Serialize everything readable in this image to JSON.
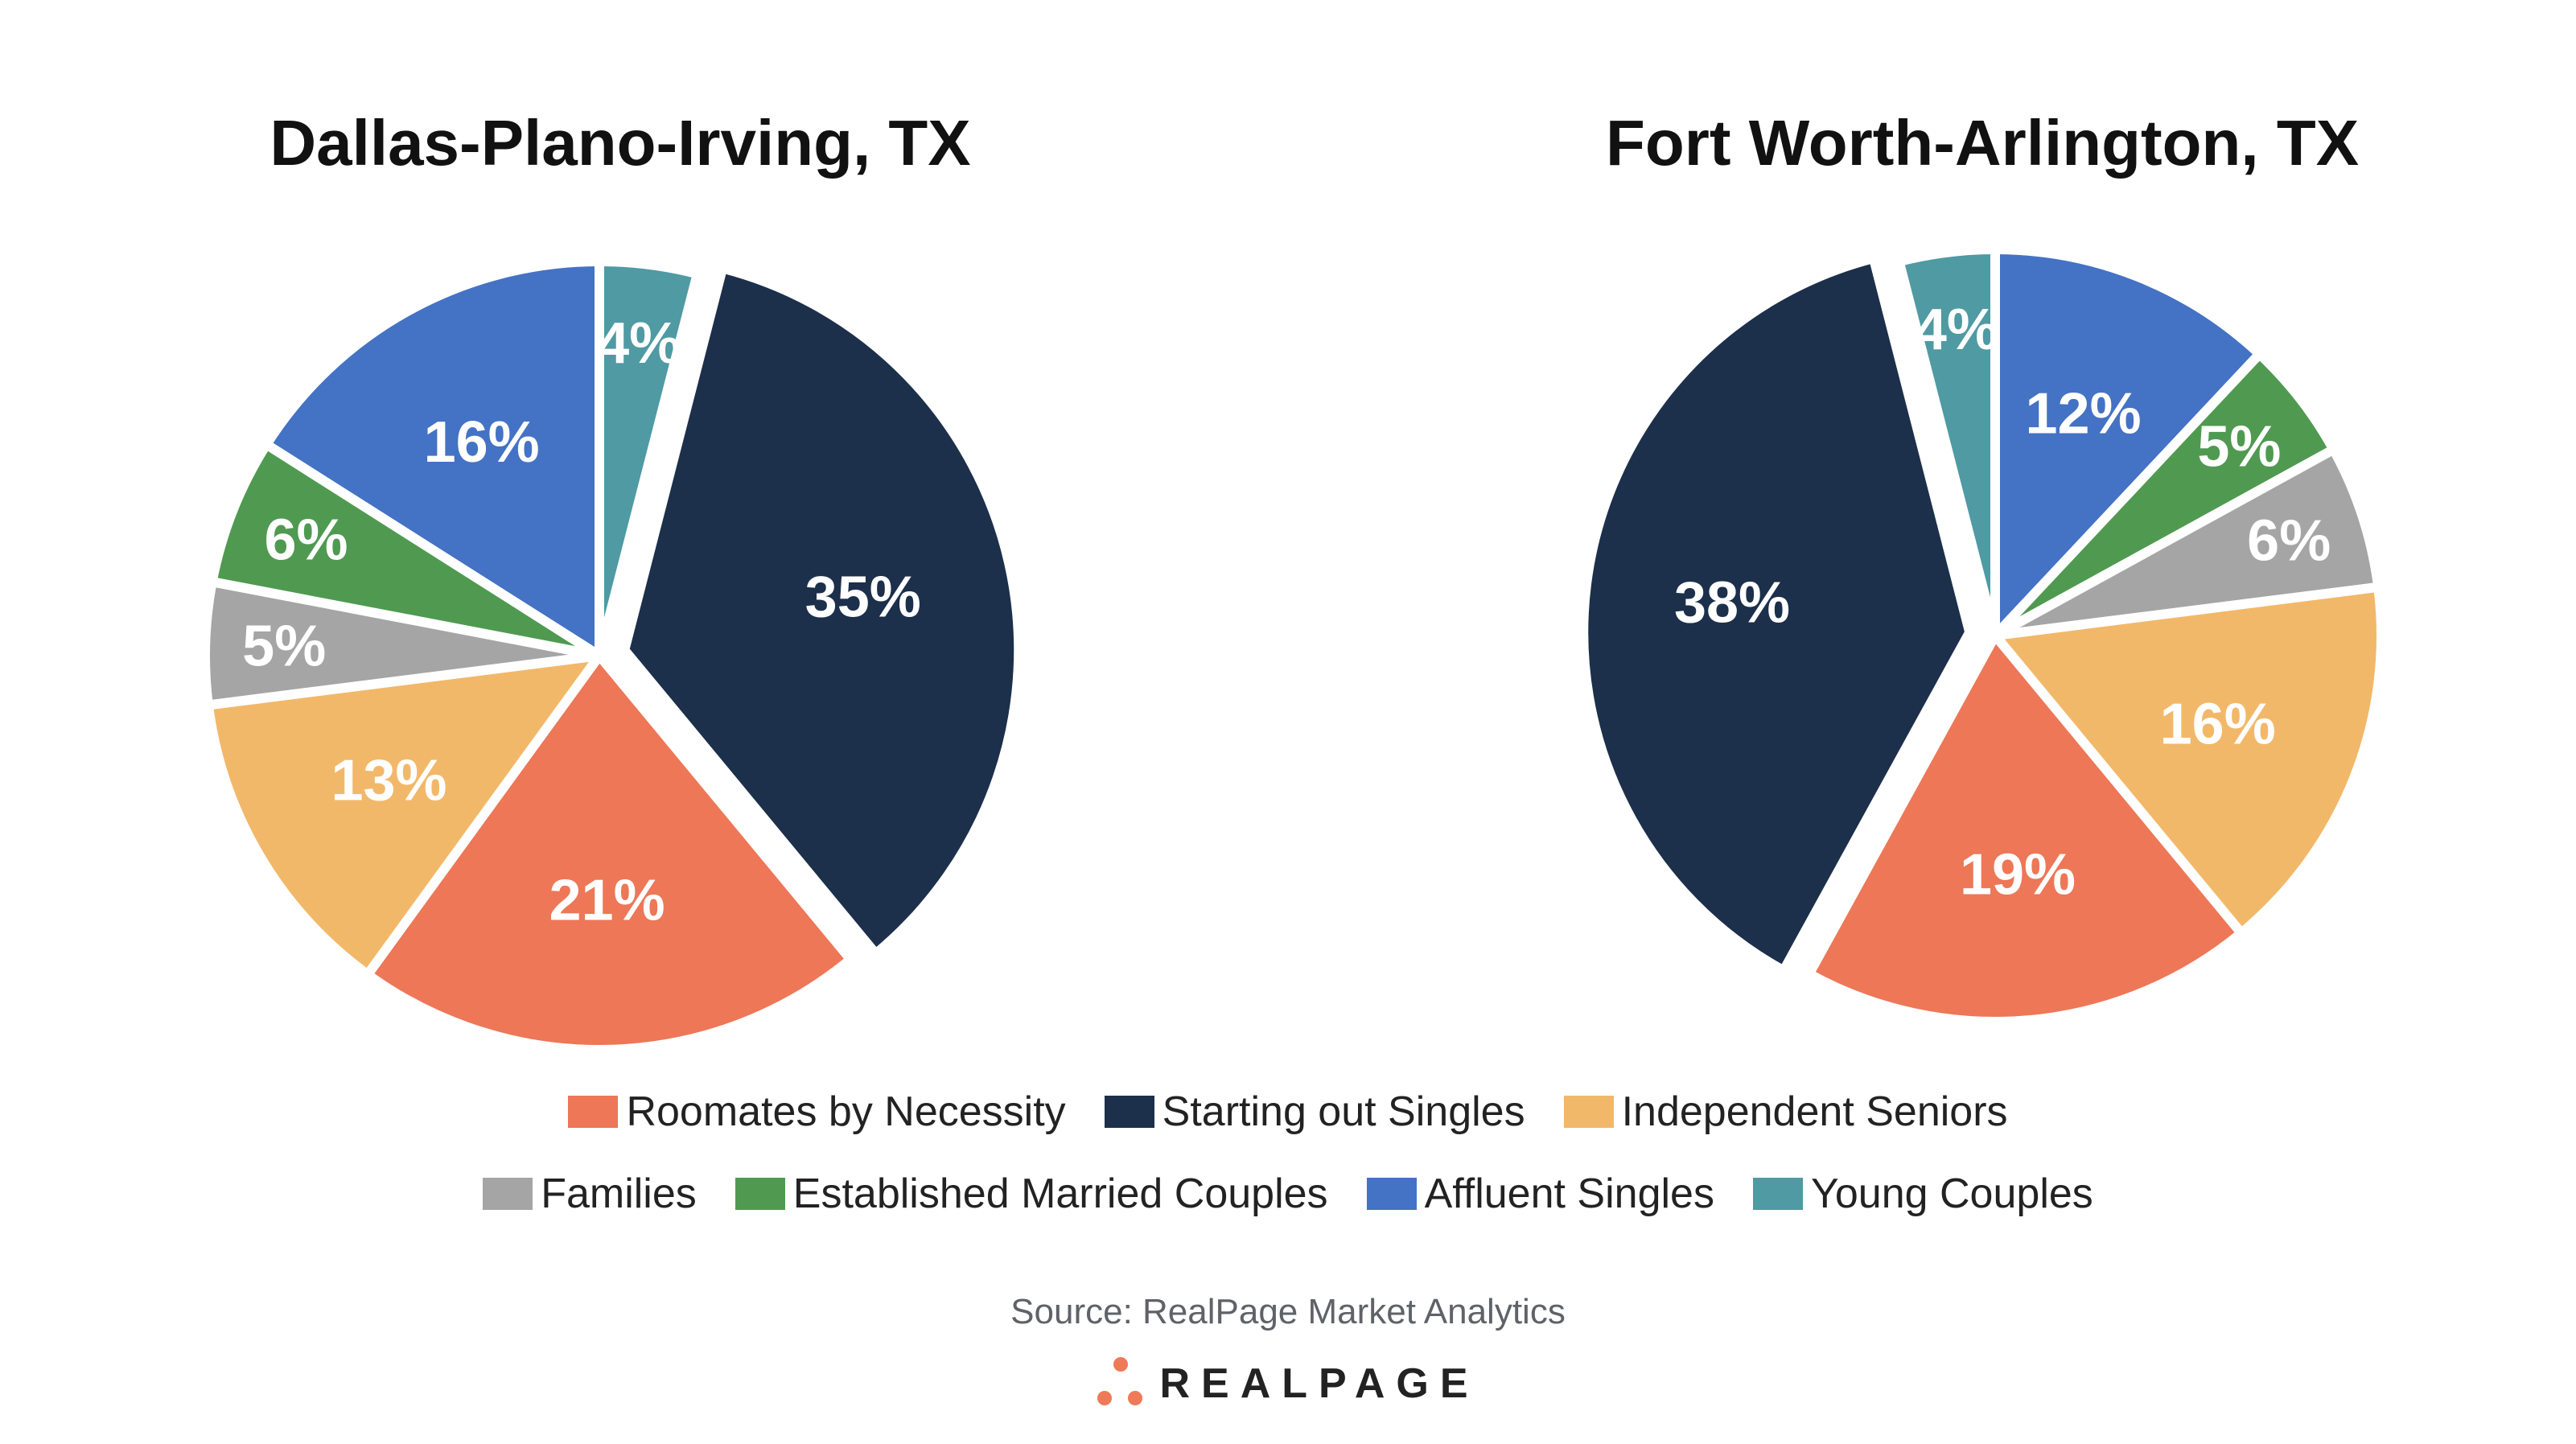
{
  "colors": {
    "Roomates by Necessity": "#ED7757",
    "Starting out Singles": "#1C2F4B",
    "Independent Seniors": "#F2B869",
    "Families": "#A5A5A5",
    "Established Married Couples": "#4F9A50",
    "Affluent Singles": "#4472C4",
    "Young Couples": "#4F9AA3"
  },
  "chart_data": [
    {
      "type": "pie",
      "title": "Dallas-Plano-Irving, TX",
      "start": "12 o'clock, clockwise",
      "exploded": "Starting out Singles",
      "slices": [
        {
          "name": "Young Couples",
          "value": 4,
          "label": "4%"
        },
        {
          "name": "Starting out Singles",
          "value": 35,
          "label": "35%"
        },
        {
          "name": "Roomates by Necessity",
          "value": 21,
          "label": "21%"
        },
        {
          "name": "Independent Seniors",
          "value": 13,
          "label": "13%"
        },
        {
          "name": "Families",
          "value": 5,
          "label": "5%"
        },
        {
          "name": "Established Married Couples",
          "value": 6,
          "label": "6%"
        },
        {
          "name": "Affluent Singles",
          "value": 16,
          "label": "16%"
        }
      ]
    },
    {
      "type": "pie",
      "title": "Fort Worth-Arlington, TX",
      "start": "12 o'clock, clockwise",
      "exploded": "Starting out Singles",
      "slices": [
        {
          "name": "Affluent Singles",
          "value": 12,
          "label": "12%"
        },
        {
          "name": "Established Married Couples",
          "value": 5,
          "label": "5%"
        },
        {
          "name": "Families",
          "value": 6,
          "label": "6%"
        },
        {
          "name": "Independent Seniors",
          "value": 16,
          "label": "16%"
        },
        {
          "name": "Roomates by Necessity",
          "value": 19,
          "label": "19%"
        },
        {
          "name": "Starting out Singles",
          "value": 38,
          "label": "38%"
        },
        {
          "name": "Young Couples",
          "value": 4,
          "label": "4%"
        }
      ]
    }
  ],
  "legend": {
    "row1": [
      "Roomates by Necessity",
      "Starting out Singles",
      "Independent Seniors"
    ],
    "row2": [
      "Families",
      "Established Married Couples",
      "Affluent Singles",
      "Young Couples"
    ],
    "placement": "bottom"
  },
  "source": "Source: RealPage Market Analytics",
  "logo": {
    "text": "REALPAGE",
    "mark": "®",
    "dot_color": "#EE7A57"
  }
}
